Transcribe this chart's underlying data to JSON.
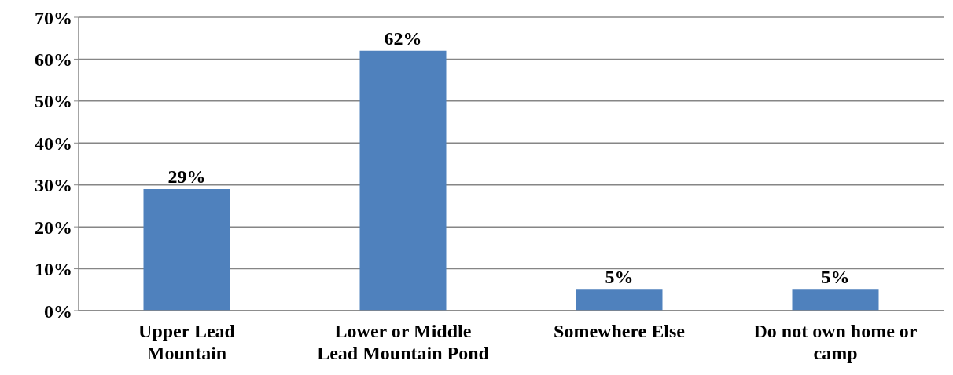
{
  "chart_data": {
    "type": "bar",
    "categories": [
      "Upper Lead Mountain",
      "Lower or Middle Lead Mountain Pond",
      "Somewhere Else",
      "Do not own home or camp"
    ],
    "values": [
      29,
      62,
      5,
      5
    ],
    "color": "#4f81bd",
    "value_labels": [
      "29%",
      "62%",
      "5%",
      "5%"
    ],
    "ylim": [
      0,
      70
    ],
    "yticks": [
      {
        "value": 0,
        "label": "0%"
      },
      {
        "value": 10,
        "label": "10%"
      },
      {
        "value": 20,
        "label": "20%"
      },
      {
        "value": 30,
        "label": "30%"
      },
      {
        "value": 40,
        "label": "40%"
      },
      {
        "value": 50,
        "label": "50%"
      },
      {
        "value": 60,
        "label": "60%"
      },
      {
        "value": 70,
        "label": "70%"
      }
    ],
    "grid": "y"
  }
}
